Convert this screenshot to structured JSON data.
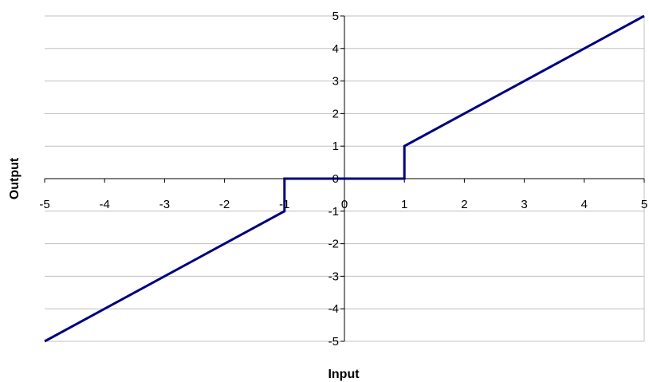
{
  "chart_data": {
    "type": "line",
    "title": "",
    "xlabel": "Input",
    "ylabel": "Output",
    "xlim": [
      -5,
      5
    ],
    "ylim": [
      -5,
      5
    ],
    "xticks": [
      "-5",
      "-4",
      "-3",
      "-2",
      "-1",
      "0",
      "1",
      "2",
      "3",
      "4",
      "5"
    ],
    "yticks": [
      "5",
      "4",
      "3",
      "2",
      "1",
      "0",
      "-1",
      "-2",
      "-3",
      "-4",
      "-5"
    ],
    "grid": true,
    "legend": "none",
    "series": [
      {
        "color": "#000080",
        "x": [
          -5,
          -1,
          -1,
          1,
          1,
          5
        ],
        "y": [
          -5,
          -1,
          0,
          0,
          1,
          5
        ]
      }
    ]
  }
}
